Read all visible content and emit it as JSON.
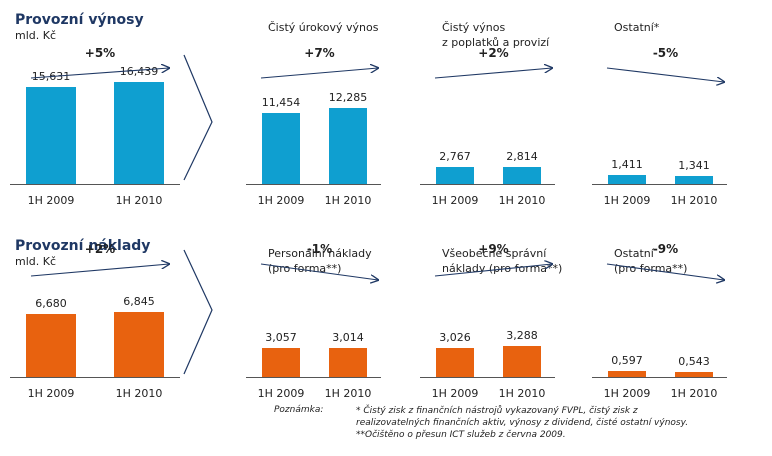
{
  "chart_data": [
    {
      "type": "bar",
      "row": "revenue",
      "title": "Provozní výnosy",
      "subtitle": "mld. Kč",
      "change": "+5%",
      "categories": [
        "1H 2009",
        "1H 2010"
      ],
      "values": [
        15.631,
        16.439
      ],
      "labels": [
        "15,631",
        "16,439"
      ],
      "color": "#0f9fd0",
      "ylim": [
        0,
        18.5
      ]
    },
    {
      "type": "bar",
      "row": "revenue",
      "title": "Čistý úrokový výnos",
      "change": "+7%",
      "categories": [
        "1H 2009",
        "1H 2010"
      ],
      "values": [
        11.454,
        12.285
      ],
      "labels": [
        "11,454",
        "12,285"
      ],
      "color": "#0f9fd0",
      "ylim": [
        0,
        18.5
      ]
    },
    {
      "type": "bar",
      "row": "revenue",
      "title": "Čistý výnos\nz poplatků a provizí",
      "change": "+2%",
      "categories": [
        "1H 2009",
        "1H 2010"
      ],
      "values": [
        2.767,
        2.814
      ],
      "labels": [
        "2,767",
        "2,814"
      ],
      "color": "#0f9fd0",
      "ylim": [
        0,
        18.5
      ]
    },
    {
      "type": "bar",
      "row": "revenue",
      "title": "Ostatní*",
      "change": "-5%",
      "categories": [
        "1H 2009",
        "1H 2010"
      ],
      "values": [
        1.411,
        1.341
      ],
      "labels": [
        "1,411",
        "1,341"
      ],
      "color": "#0f9fd0",
      "ylim": [
        0,
        18.5
      ]
    },
    {
      "type": "bar",
      "row": "costs",
      "title": "Provozní náklady",
      "subtitle": "mld. Kč",
      "change": "+2%",
      "categories": [
        "1H 2009",
        "1H 2010"
      ],
      "values": [
        6.68,
        6.845
      ],
      "labels": [
        "6,680",
        "6,845"
      ],
      "color": "#e8620f",
      "ylim": [
        0,
        9.2
      ]
    },
    {
      "type": "bar",
      "row": "costs",
      "title": "Personální náklady\n(pro forma**)",
      "change": "-1%",
      "categories": [
        "1H 2009",
        "1H 2010"
      ],
      "values": [
        3.057,
        3.014
      ],
      "labels": [
        "3,057",
        "3,014"
      ],
      "color": "#e8620f",
      "ylim": [
        0,
        9.2
      ]
    },
    {
      "type": "bar",
      "row": "costs",
      "title": "Všeobecné správní\nnáklady (pro forma**)",
      "change": "+9%",
      "categories": [
        "1H 2009",
        "1H 2010"
      ],
      "values": [
        3.026,
        3.288
      ],
      "labels": [
        "3,026",
        "3,288"
      ],
      "color": "#e8620f",
      "ylim": [
        0,
        9.2
      ]
    },
    {
      "type": "bar",
      "row": "costs",
      "title": "Ostatní\n(pro forma**)",
      "change": "-9%",
      "categories": [
        "1H 2009",
        "1H 2010"
      ],
      "values": [
        0.597,
        0.543
      ],
      "labels": [
        "0,597",
        "0,543"
      ],
      "color": "#e8620f",
      "ylim": [
        0,
        9.2
      ]
    }
  ],
  "notes": {
    "label": "Poznámka:",
    "lines": [
      "* Čistý zisk z finančních nástrojů vykazovaný FVPL, čistý zisk z",
      "realizovatelných finančních aktiv, výnosy z dividend, čisté ostatní výnosy.",
      "**Očištěno o přesun ICT služeb z června 2009."
    ]
  }
}
